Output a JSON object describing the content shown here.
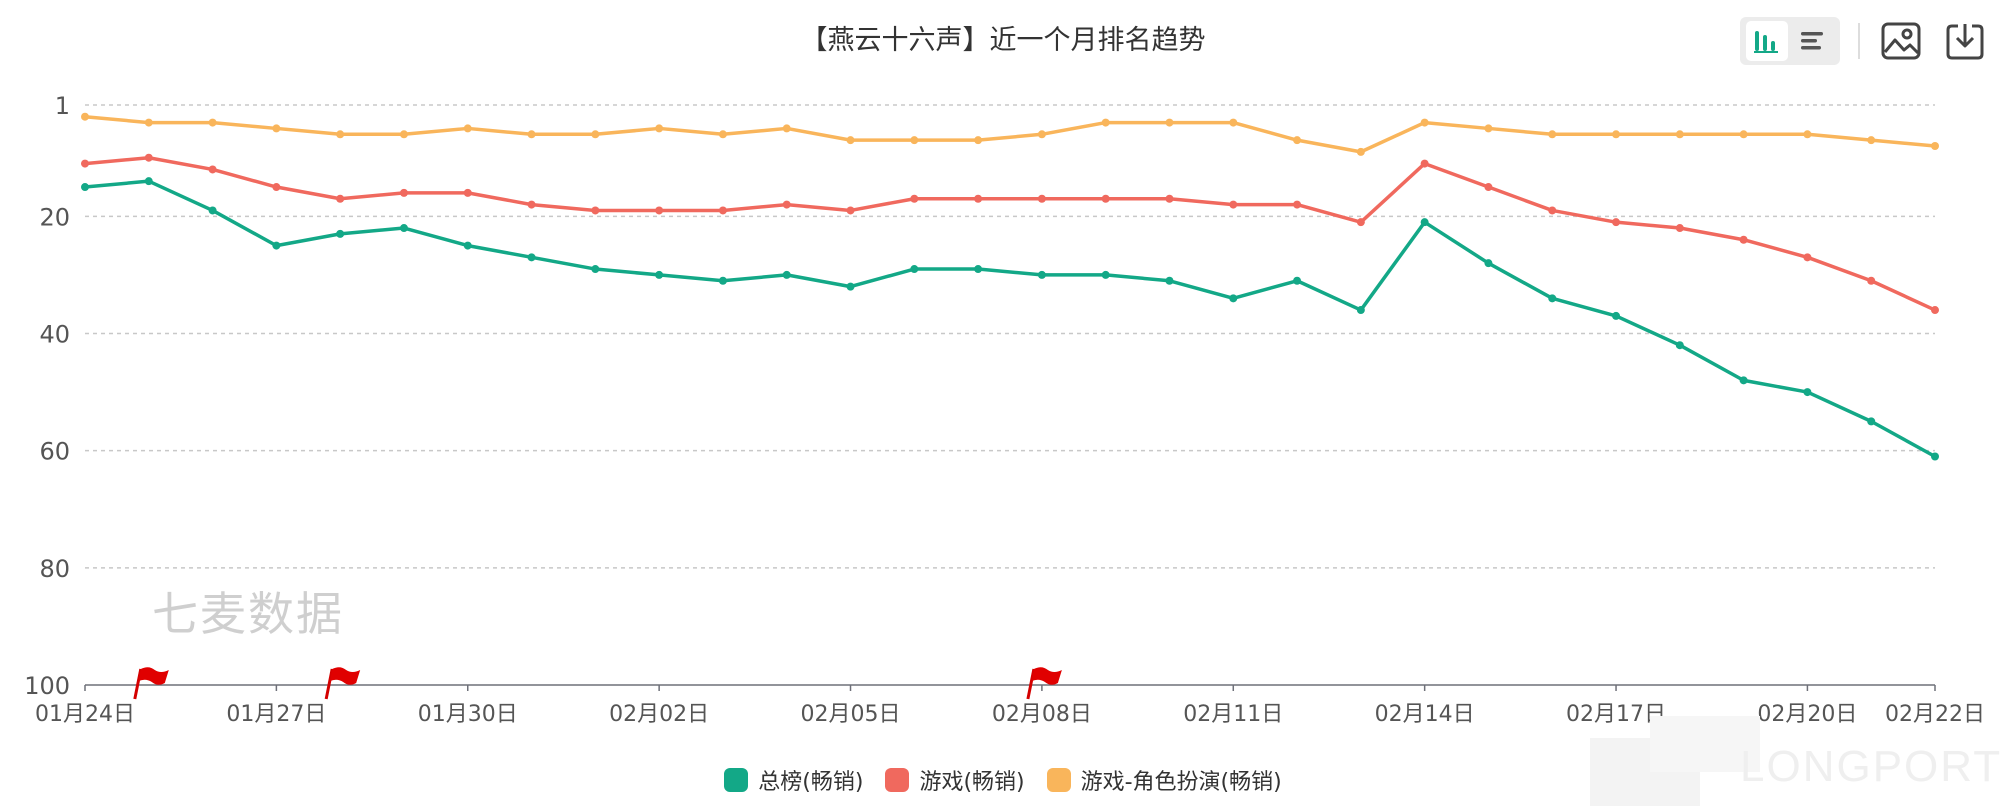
{
  "chart_data": {
    "type": "line",
    "title": "【燕云十六声】近一个月排名趋势",
    "x": [
      "01月24日",
      "01月25日",
      "01月26日",
      "01月27日",
      "01月28日",
      "01月29日",
      "01月30日",
      "01月31日",
      "02月01日",
      "02月02日",
      "02月03日",
      "02月04日",
      "02月05日",
      "02月06日",
      "02月07日",
      "02月08日",
      "02月09日",
      "02月10日",
      "02月11日",
      "02月12日",
      "02月13日",
      "02月14日",
      "02月15日",
      "02月16日",
      "02月17日",
      "02月18日",
      "02月19日",
      "02月20日",
      "02月21日",
      "02月22日"
    ],
    "x_tick_labels": [
      "01月24日",
      "01月27日",
      "01月30日",
      "02月02日",
      "02月05日",
      "02月08日",
      "02月11日",
      "02月14日",
      "02月17日",
      "02月20日",
      "02月22日"
    ],
    "y_ticks": [
      1,
      20,
      40,
      60,
      80,
      100
    ],
    "ylim": [
      1,
      100
    ],
    "y_inverted": true,
    "grid": true,
    "legend_position": "bottom",
    "series": [
      {
        "name": "总榜(畅销)",
        "color": "#13a887",
        "values": [
          15,
          14,
          19,
          25,
          23,
          22,
          25,
          27,
          29,
          30,
          31,
          30,
          32,
          29,
          29,
          30,
          30,
          31,
          34,
          31,
          36,
          21,
          28,
          34,
          37,
          42,
          48,
          50,
          55,
          61
        ]
      },
      {
        "name": "游戏(畅销)",
        "color": "#f0695e",
        "values": [
          11,
          10,
          12,
          15,
          17,
          16,
          16,
          18,
          19,
          19,
          19,
          18,
          19,
          17,
          17,
          17,
          17,
          17,
          18,
          18,
          21,
          11,
          15,
          19,
          21,
          22,
          24,
          27,
          31,
          36
        ]
      },
      {
        "name": "游戏-角色扮演(畅销)",
        "color": "#f9b55b",
        "values": [
          3,
          4,
          4,
          5,
          6,
          6,
          5,
          6,
          6,
          5,
          6,
          5,
          7,
          7,
          7,
          6,
          4,
          4,
          4,
          7,
          9,
          4,
          5,
          6,
          6,
          6,
          6,
          6,
          7,
          8
        ]
      }
    ],
    "event_markers": [
      "01月25日",
      "01月28日",
      "02月08日"
    ]
  },
  "watermark": "七麦数据",
  "brand": "LONGPORT",
  "toolbar": {
    "icons": [
      "bar-view-icon",
      "list-view-icon",
      "image-save-icon",
      "download-icon"
    ]
  }
}
